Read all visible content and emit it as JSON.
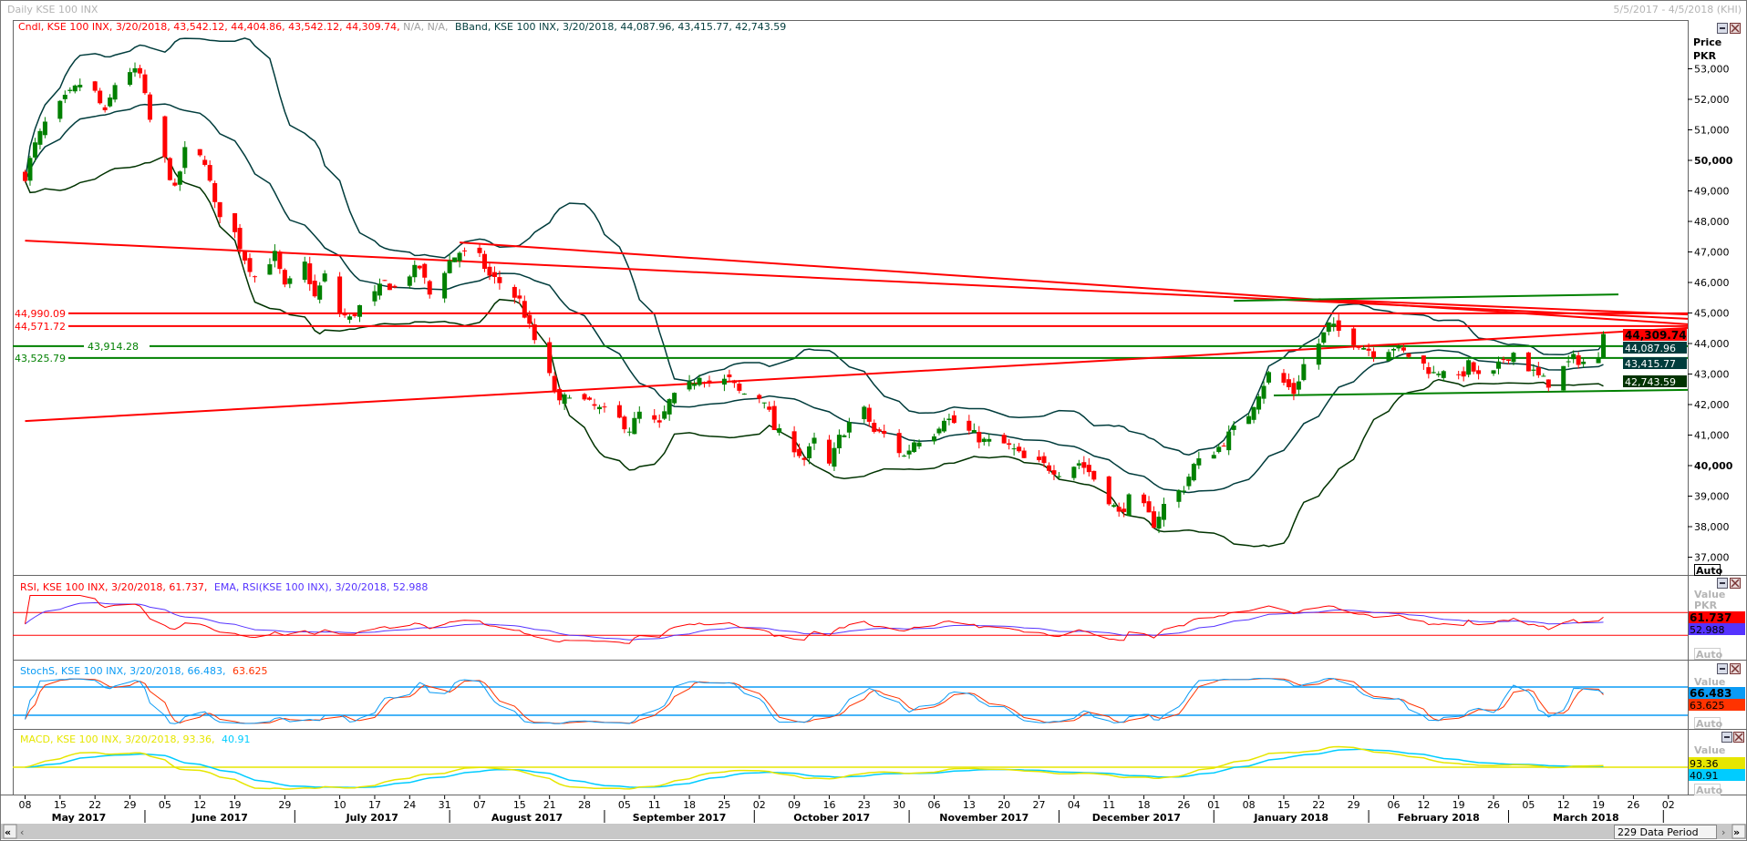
{
  "window": {
    "title": "Daily KSE 100 INX",
    "date_range": "5/5/2017 - 4/5/2018 (KHI)"
  },
  "price_panel": {
    "header_candle": "Cndl, KSE 100 INX, 3/20/2018, 43,542.12, 44,404.86, 43,542.12, 44,309.74,",
    "header_na": "N/A, N/A,",
    "header_bband": "BBand, KSE 100 INX, 3/20/2018, 44,087.96, 43,415.77, 42,743.59",
    "axis_title_1": "Price",
    "axis_title_2": "PKR",
    "auto_label": "Auto",
    "last_close_box": "44,309.74",
    "bb_upper_box": "44,087.96",
    "bb_mid_box": "43,415.77",
    "bb_lower_box": "42,743.59",
    "level_labels": [
      "44,990.09",
      "44,571.72",
      "43,914.28",
      "43,525.79"
    ]
  },
  "rsi_panel": {
    "header_rsi": "RSI, KSE 100 INX, 3/20/2018, 61.737,",
    "header_ema": "EMA, RSI(KSE 100 INX), 3/20/2018, 52.988",
    "value_label": "Value",
    "unit_label": "PKR",
    "rsi_box": "61.737",
    "ema_box": "52.988",
    "auto_label": "Auto"
  },
  "stoch_panel": {
    "header_main": "StochS, KSE 100 INX, 3/20/2018, 66.483,",
    "header_signal": "63.625",
    "value_label": "Value",
    "k_box": "66.483",
    "d_box": "63.625",
    "auto_label": "Auto"
  },
  "macd_panel": {
    "header_main": "MACD, KSE 100 INX, 3/20/2018, 93.36,",
    "header_signal": "40.91",
    "value_label": "Value",
    "macd_box": "93.36",
    "signal_box": "40.91",
    "auto_label": "Auto"
  },
  "scrollbar": {
    "first_label": "«",
    "prev_label": "‹",
    "next_label": "›",
    "last_label": "»",
    "data_period": "229 Data Period"
  },
  "colors": {
    "up": "#008000",
    "down": "#ff0000",
    "bband": "#003c3c",
    "bband_lower": "#003300",
    "rsi": "#ff0000",
    "ema": "#5533ff",
    "stoch_k": "#0a9bf5",
    "stoch_d": "#ff3300",
    "macd": "#e6e600",
    "macd_signal": "#00ccff"
  },
  "chart_data": {
    "type": "candlestick",
    "title": "Daily KSE 100 INX",
    "ylabel": "Price PKR",
    "ylim": [
      36700,
      53800
    ],
    "y_ticks": [
      37000,
      38000,
      39000,
      40000,
      41000,
      42000,
      43000,
      44000,
      45000,
      46000,
      47000,
      48000,
      49000,
      50000,
      51000,
      52000,
      53000
    ],
    "y_tick_labels": [
      "37,000",
      "38,000",
      "39,000",
      "40,000",
      "41,000",
      "42,000",
      "43,000",
      "44,000",
      "45,000",
      "46,000",
      "47,000",
      "48,000",
      "49,000",
      "50,000",
      "51,000",
      "52,000",
      "53,000"
    ],
    "x_ticks": [
      [
        "2017-05-08",
        "08"
      ],
      [
        "2017-05-15",
        "15"
      ],
      [
        "2017-05-22",
        "22"
      ],
      [
        "2017-05-29",
        "29"
      ],
      [
        "2017-06-05",
        "05"
      ],
      [
        "2017-06-12",
        "12"
      ],
      [
        "2017-06-19",
        "19"
      ],
      [
        "2017-06-29",
        "29"
      ],
      [
        "2017-07-10",
        "10"
      ],
      [
        "2017-07-17",
        "17"
      ],
      [
        "2017-07-24",
        "24"
      ],
      [
        "2017-07-31",
        "31"
      ],
      [
        "2017-08-07",
        "07"
      ],
      [
        "2017-08-15",
        "15"
      ],
      [
        "2017-08-21",
        "21"
      ],
      [
        "2017-08-28",
        "28"
      ],
      [
        "2017-09-05",
        "05"
      ],
      [
        "2017-09-11",
        "11"
      ],
      [
        "2017-09-18",
        "18"
      ],
      [
        "2017-09-25",
        "25"
      ],
      [
        "2017-10-02",
        "02"
      ],
      [
        "2017-10-09",
        "09"
      ],
      [
        "2017-10-16",
        "16"
      ],
      [
        "2017-10-23",
        "23"
      ],
      [
        "2017-10-30",
        "30"
      ],
      [
        "2017-11-06",
        "06"
      ],
      [
        "2017-11-13",
        "13"
      ],
      [
        "2017-11-20",
        "20"
      ],
      [
        "2017-11-27",
        "27"
      ],
      [
        "2017-12-04",
        "04"
      ],
      [
        "2017-12-11",
        "11"
      ],
      [
        "2017-12-18",
        "18"
      ],
      [
        "2017-12-26",
        "26"
      ],
      [
        "2018-01-01",
        "01"
      ],
      [
        "2018-01-08",
        "08"
      ],
      [
        "2018-01-15",
        "15"
      ],
      [
        "2018-01-22",
        "22"
      ],
      [
        "2018-01-29",
        "29"
      ],
      [
        "2018-02-06",
        "06"
      ],
      [
        "2018-02-12",
        "12"
      ],
      [
        "2018-02-19",
        "19"
      ],
      [
        "2018-02-26",
        "26"
      ],
      [
        "2018-03-05",
        "05"
      ],
      [
        "2018-03-12",
        "12"
      ],
      [
        "2018-03-19",
        "19"
      ],
      [
        "2018-03-26",
        "26"
      ],
      [
        "2018-04-02",
        "02"
      ]
    ],
    "months": [
      [
        "2017-05-01",
        "2017-06-01",
        "May 2017"
      ],
      [
        "2017-06-01",
        "2017-07-01",
        "June 2017"
      ],
      [
        "2017-07-01",
        "2017-08-01",
        "July 2017"
      ],
      [
        "2017-08-01",
        "2017-09-01",
        "August 2017"
      ],
      [
        "2017-09-01",
        "2017-10-01",
        "September 2017"
      ],
      [
        "2017-10-01",
        "2017-11-01",
        "October 2017"
      ],
      [
        "2017-11-01",
        "2017-12-01",
        "November 2017"
      ],
      [
        "2017-12-01",
        "2018-01-01",
        "December 2017"
      ],
      [
        "2018-01-01",
        "2018-02-01",
        "January 2018"
      ],
      [
        "2018-02-01",
        "2018-03-01",
        "February 2018"
      ],
      [
        "2018-03-01",
        "2018-04-01",
        "March 2018"
      ]
    ],
    "last_bar": {
      "date": "2018-03-20",
      "open": 43542.12,
      "high": 44404.86,
      "low": 43542.12,
      "close": 44309.74
    },
    "approx_closes": [
      [
        "2017-05-08",
        49500
      ],
      [
        "2017-05-10",
        50500
      ],
      [
        "2017-05-12",
        51200
      ],
      [
        "2017-05-16",
        52000
      ],
      [
        "2017-05-19",
        52500
      ],
      [
        "2017-05-22",
        52200
      ],
      [
        "2017-05-24",
        51500
      ],
      [
        "2017-05-26",
        52500
      ],
      [
        "2017-05-29",
        52950
      ],
      [
        "2017-05-31",
        52800
      ],
      [
        "2017-06-02",
        51300
      ],
      [
        "2017-06-05",
        50000
      ],
      [
        "2017-06-07",
        49000
      ],
      [
        "2017-06-09",
        50300
      ],
      [
        "2017-06-13",
        50000
      ],
      [
        "2017-06-15",
        48500
      ],
      [
        "2017-06-19",
        47600
      ],
      [
        "2017-06-21",
        46800
      ],
      [
        "2017-06-23",
        46200
      ],
      [
        "2017-06-27",
        46900
      ],
      [
        "2017-06-29",
        45800
      ],
      [
        "2017-07-03",
        46600
      ],
      [
        "2017-07-05",
        45500
      ],
      [
        "2017-07-07",
        46200
      ],
      [
        "2017-07-10",
        45000
      ],
      [
        "2017-07-12",
        44800
      ],
      [
        "2017-07-14",
        45200
      ],
      [
        "2017-07-17",
        45600
      ],
      [
        "2017-07-19",
        46000
      ],
      [
        "2017-07-21",
        45800
      ],
      [
        "2017-07-24",
        46300
      ],
      [
        "2017-07-26",
        46500
      ],
      [
        "2017-07-28",
        45600
      ],
      [
        "2017-08-01",
        46700
      ],
      [
        "2017-08-03",
        47000
      ],
      [
        "2017-08-07",
        46800
      ],
      [
        "2017-08-09",
        46200
      ],
      [
        "2017-08-11",
        46000
      ],
      [
        "2017-08-15",
        45400
      ],
      [
        "2017-08-17",
        44500
      ],
      [
        "2017-08-21",
        42900
      ],
      [
        "2017-08-23",
        42000
      ],
      [
        "2017-08-25",
        42400
      ],
      [
        "2017-08-29",
        42000
      ],
      [
        "2017-09-04",
        41500
      ],
      [
        "2017-09-06",
        41200
      ],
      [
        "2017-09-08",
        41700
      ],
      [
        "2017-09-12",
        41300
      ],
      [
        "2017-09-14",
        42100
      ],
      [
        "2017-09-18",
        42600
      ],
      [
        "2017-09-20",
        43000
      ],
      [
        "2017-09-22",
        42700
      ],
      [
        "2017-09-26",
        42800
      ],
      [
        "2017-09-28",
        42400
      ],
      [
        "2017-10-03",
        42200
      ],
      [
        "2017-10-05",
        41200
      ],
      [
        "2017-10-09",
        40600
      ],
      [
        "2017-10-11",
        40200
      ],
      [
        "2017-10-13",
        40800
      ],
      [
        "2017-10-16",
        40000
      ],
      [
        "2017-10-18",
        40900
      ],
      [
        "2017-10-20",
        41400
      ],
      [
        "2017-10-23",
        41800
      ],
      [
        "2017-10-25",
        41100
      ],
      [
        "2017-10-27",
        41000
      ],
      [
        "2017-10-31",
        40300
      ],
      [
        "2017-11-02",
        40800
      ],
      [
        "2017-11-06",
        41100
      ],
      [
        "2017-11-08",
        41600
      ],
      [
        "2017-11-10",
        41400
      ],
      [
        "2017-11-14",
        41000
      ],
      [
        "2017-11-16",
        40800
      ],
      [
        "2017-11-20",
        40700
      ],
      [
        "2017-11-22",
        40500
      ],
      [
        "2017-11-24",
        40200
      ],
      [
        "2017-11-28",
        40000
      ],
      [
        "2017-12-01",
        39800
      ],
      [
        "2017-12-05",
        40100
      ],
      [
        "2017-12-07",
        39800
      ],
      [
        "2017-12-11",
        38900
      ],
      [
        "2017-12-13",
        38400
      ],
      [
        "2017-12-15",
        38900
      ],
      [
        "2017-12-18",
        38600
      ],
      [
        "2017-12-20",
        38100
      ],
      [
        "2017-12-22",
        38700
      ],
      [
        "2017-12-26",
        39300
      ],
      [
        "2017-12-28",
        40000
      ],
      [
        "2018-01-02",
        40600
      ],
      [
        "2018-01-04",
        41000
      ],
      [
        "2018-01-08",
        41700
      ],
      [
        "2018-01-10",
        42400
      ],
      [
        "2018-01-12",
        43000
      ],
      [
        "2018-01-15",
        42700
      ],
      [
        "2018-01-17",
        42400
      ],
      [
        "2018-01-19",
        43300
      ],
      [
        "2018-01-22",
        44000
      ],
      [
        "2018-01-24",
        44600
      ],
      [
        "2018-01-26",
        44400
      ],
      [
        "2018-01-29",
        44100
      ],
      [
        "2018-01-31",
        43900
      ],
      [
        "2018-02-02",
        43700
      ],
      [
        "2018-02-06",
        43900
      ],
      [
        "2018-02-08",
        43700
      ],
      [
        "2018-02-12",
        43300
      ],
      [
        "2018-02-14",
        43000
      ],
      [
        "2018-02-16",
        43200
      ],
      [
        "2018-02-19",
        42800
      ],
      [
        "2018-02-21",
        43300
      ],
      [
        "2018-02-23",
        42900
      ],
      [
        "2018-02-26",
        43000
      ],
      [
        "2018-02-28",
        43500
      ],
      [
        "2018-03-02",
        43700
      ],
      [
        "2018-03-05",
        43200
      ],
      [
        "2018-03-07",
        42900
      ],
      [
        "2018-03-09",
        42700
      ],
      [
        "2018-03-12",
        43200
      ],
      [
        "2018-03-14",
        43500
      ],
      [
        "2018-03-16",
        43400
      ],
      [
        "2018-03-19",
        43450
      ]
    ],
    "horizontal_levels": [
      {
        "value": 44990.09,
        "color": "#ff0000"
      },
      {
        "value": 44571.72,
        "color": "#ff0000"
      },
      {
        "value": 43914.28,
        "color": "#008000"
      },
      {
        "value": 43525.79,
        "color": "#008000"
      }
    ],
    "trendlines": [
      {
        "from": [
          "2017-05-08",
          47370
        ],
        "to": [
          "2018-04-06",
          44810
        ],
        "color": "#ff0000"
      },
      {
        "from": [
          "2017-08-03",
          47310
        ],
        "to": [
          "2018-04-06",
          44630
        ],
        "color": "#ff0000"
      },
      {
        "from": [
          "2018-01-22",
          45450
        ],
        "to": [
          "2018-04-06",
          44950
        ],
        "color": "#ff0000"
      },
      {
        "from": [
          "2017-05-08",
          41460
        ],
        "to": [
          "2018-04-06",
          44510
        ],
        "color": "#ff0000"
      },
      {
        "from": [
          "2018-01-05",
          45400
        ],
        "to": [
          "2018-03-23",
          45610
        ],
        "color": "#008000"
      },
      {
        "from": [
          "2018-01-13",
          42300
        ],
        "to": [
          "2018-04-06",
          42480
        ],
        "color": "#008000"
      }
    ],
    "rsi_levels": [
      70,
      30
    ],
    "stoch_levels": [
      80,
      20
    ]
  }
}
